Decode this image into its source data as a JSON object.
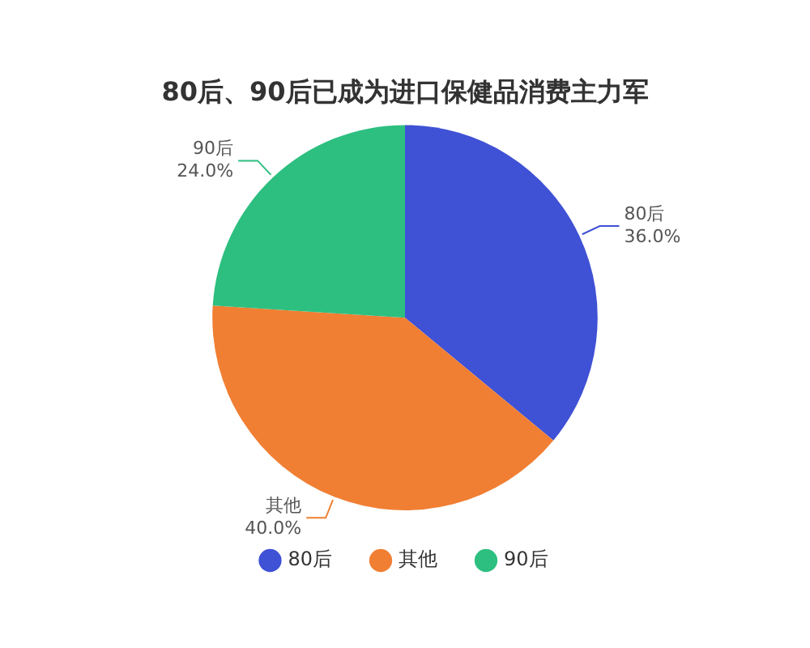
{
  "chart_data": {
    "type": "pie",
    "title": "80后、90后已成为进口保健品消费主力军",
    "categories": [
      "80后",
      "其他",
      "90后"
    ],
    "values": [
      36,
      40,
      24
    ],
    "colors": [
      "#3f51d4",
      "#f07f33",
      "#2dbf80"
    ],
    "value_labels": [
      "36.0%",
      "40.0%",
      "24.0%"
    ],
    "legend": "bottom"
  }
}
